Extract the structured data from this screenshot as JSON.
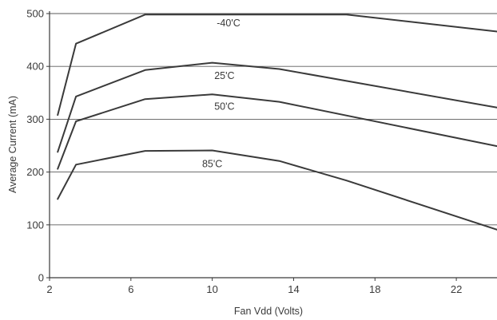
{
  "chart_data": {
    "type": "line",
    "title": "",
    "xlabel": "Fan Vdd (Volts)",
    "ylabel": "Average Current (mA)",
    "xlim": [
      2,
      24
    ],
    "ylim": [
      0,
      500
    ],
    "xticks": [
      2,
      6,
      10,
      14,
      18,
      22
    ],
    "yticks": [
      0,
      100,
      200,
      300,
      400,
      500
    ],
    "grid": "horizontal",
    "legend": "inline labels",
    "line_color": "#3a3a3a",
    "series": [
      {
        "name": "-40'C",
        "x": [
          2.4,
          3.3,
          6.7,
          10,
          13.3,
          16.6,
          24
        ],
        "y": [
          308,
          443,
          498,
          498,
          498,
          498,
          466
        ]
      },
      {
        "name": "25'C",
        "x": [
          2.4,
          3.3,
          6.7,
          10,
          13.3,
          24
        ],
        "y": [
          238,
          343,
          393,
          407,
          395,
          322
        ]
      },
      {
        "name": "50'C",
        "x": [
          2.4,
          3.3,
          6.7,
          10,
          13.3,
          24
        ],
        "y": [
          206,
          296,
          338,
          347,
          333,
          249
        ]
      },
      {
        "name": "85'C",
        "x": [
          2.4,
          3.3,
          6.7,
          10,
          13.3,
          16.6,
          24
        ],
        "y": [
          149,
          214,
          240,
          241,
          221,
          184,
          91
        ]
      }
    ]
  }
}
